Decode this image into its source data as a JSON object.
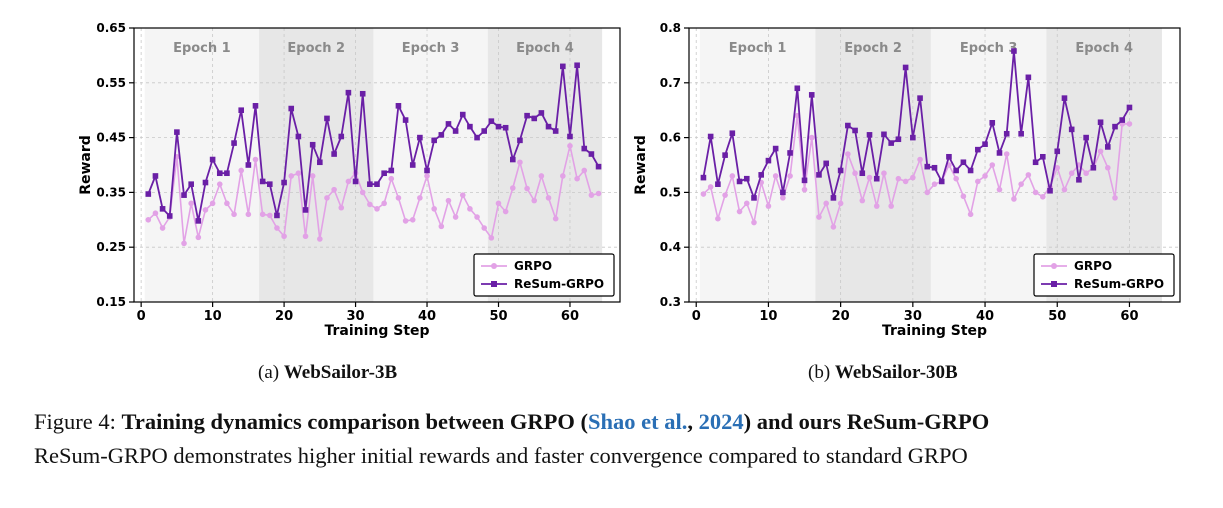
{
  "colors": {
    "grpo": "#e2a2e6",
    "resum": "#6a1fa6",
    "epoch_odd": "#f5f5f5",
    "epoch_even": "#e7e7e7",
    "epoch_label": "#8a8a8a",
    "cite": "#2a6fb5"
  },
  "chart_data": [
    {
      "type": "line",
      "title": "",
      "xlabel": "Training Step",
      "ylabel": "Reward",
      "xlim": [
        -1,
        67
      ],
      "ylim": [
        0.15,
        0.65
      ],
      "xticks": [
        0,
        10,
        20,
        30,
        40,
        50,
        60
      ],
      "yticks": [
        0.15,
        0.25,
        0.35,
        0.45,
        0.55,
        0.65
      ],
      "ytick_labels": [
        "0.15",
        "0.25",
        "0.35",
        "0.45",
        "0.55",
        "0.65"
      ],
      "grid": true,
      "legend_position": "lower-right",
      "epochs": [
        {
          "label": "Epoch 1",
          "start": 1,
          "end": 16
        },
        {
          "label": "Epoch 2",
          "start": 17,
          "end": 32
        },
        {
          "label": "Epoch 3",
          "start": 33,
          "end": 48
        },
        {
          "label": "Epoch 4",
          "start": 49,
          "end": 64
        }
      ],
      "x": [
        1,
        2,
        3,
        4,
        5,
        6,
        7,
        8,
        9,
        10,
        11,
        12,
        13,
        14,
        15,
        16,
        17,
        18,
        19,
        20,
        21,
        22,
        23,
        24,
        25,
        26,
        27,
        28,
        29,
        30,
        31,
        32,
        33,
        34,
        35,
        36,
        37,
        38,
        39,
        40,
        41,
        42,
        43,
        44,
        45,
        46,
        47,
        48,
        49,
        50,
        51,
        52,
        53,
        54,
        55,
        56,
        57,
        58,
        59,
        60,
        61,
        62,
        63,
        64
      ],
      "series": [
        {
          "name": "GRPO",
          "marker": "circle",
          "values": [
            0.3,
            0.312,
            0.285,
            0.305,
            0.415,
            0.257,
            0.33,
            0.268,
            0.318,
            0.33,
            0.365,
            0.33,
            0.31,
            0.39,
            0.31,
            0.41,
            0.31,
            0.308,
            0.285,
            0.27,
            0.38,
            0.385,
            0.27,
            0.38,
            0.265,
            0.34,
            0.355,
            0.322,
            0.37,
            0.385,
            0.35,
            0.328,
            0.32,
            0.33,
            0.375,
            0.34,
            0.298,
            0.3,
            0.34,
            0.38,
            0.32,
            0.288,
            0.335,
            0.305,
            0.345,
            0.32,
            0.305,
            0.285,
            0.267,
            0.33,
            0.315,
            0.358,
            0.405,
            0.357,
            0.335,
            0.38,
            0.34,
            0.302,
            0.38,
            0.435,
            0.375,
            0.39,
            0.345,
            0.348
          ]
        },
        {
          "name": "ReSum-GRPO",
          "marker": "square",
          "values": [
            0.347,
            0.38,
            0.32,
            0.307,
            0.46,
            0.345,
            0.365,
            0.298,
            0.368,
            0.41,
            0.385,
            0.385,
            0.44,
            0.5,
            0.4,
            0.508,
            0.37,
            0.365,
            0.308,
            0.368,
            0.503,
            0.452,
            0.318,
            0.437,
            0.405,
            0.485,
            0.42,
            0.452,
            0.532,
            0.37,
            0.53,
            0.365,
            0.365,
            0.385,
            0.39,
            0.508,
            0.482,
            0.4,
            0.45,
            0.39,
            0.445,
            0.455,
            0.475,
            0.462,
            0.492,
            0.47,
            0.45,
            0.462,
            0.48,
            0.47,
            0.468,
            0.41,
            0.445,
            0.49,
            0.485,
            0.495,
            0.47,
            0.462,
            0.58,
            0.452,
            0.582,
            0.43,
            0.42,
            0.397
          ]
        }
      ],
      "caption_label": "(a)",
      "caption_title": "WebSailor-3B"
    },
    {
      "type": "line",
      "title": "",
      "xlabel": "Training Step",
      "ylabel": "Reward",
      "xlim": [
        -1,
        67
      ],
      "ylim": [
        0.3,
        0.8
      ],
      "xticks": [
        0,
        10,
        20,
        30,
        40,
        50,
        60
      ],
      "yticks": [
        0.3,
        0.4,
        0.5,
        0.6,
        0.7,
        0.8
      ],
      "ytick_labels": [
        "0.3",
        "0.4",
        "0.5",
        "0.6",
        "0.7",
        "0.8"
      ],
      "grid": true,
      "legend_position": "lower-right",
      "epochs": [
        {
          "label": "Epoch 1",
          "start": 1,
          "end": 16
        },
        {
          "label": "Epoch 2",
          "start": 17,
          "end": 32
        },
        {
          "label": "Epoch 3",
          "start": 33,
          "end": 48
        },
        {
          "label": "Epoch 4",
          "start": 49,
          "end": 64
        }
      ],
      "x": [
        1,
        2,
        3,
        4,
        5,
        6,
        7,
        8,
        9,
        10,
        11,
        12,
        13,
        14,
        15,
        16,
        17,
        18,
        19,
        20,
        21,
        22,
        23,
        24,
        25,
        26,
        27,
        28,
        29,
        30,
        31,
        32,
        33,
        34,
        35,
        36,
        37,
        38,
        39,
        40,
        41,
        42,
        43,
        44,
        45,
        46,
        47,
        48,
        49,
        50,
        51,
        52,
        53,
        54,
        55,
        56,
        57,
        58,
        59,
        60
      ],
      "series": [
        {
          "name": "GRPO",
          "marker": "circle",
          "values": [
            0.497,
            0.51,
            0.452,
            0.495,
            0.53,
            0.465,
            0.48,
            0.445,
            0.518,
            0.475,
            0.53,
            0.49,
            0.53,
            0.64,
            0.505,
            0.6,
            0.455,
            0.48,
            0.437,
            0.48,
            0.57,
            0.535,
            0.485,
            0.527,
            0.475,
            0.535,
            0.475,
            0.525,
            0.52,
            0.527,
            0.56,
            0.5,
            0.515,
            0.52,
            0.55,
            0.525,
            0.493,
            0.46,
            0.52,
            0.53,
            0.55,
            0.505,
            0.57,
            0.488,
            0.515,
            0.532,
            0.5,
            0.492,
            0.51,
            0.545,
            0.505,
            0.535,
            0.55,
            0.535,
            0.545,
            0.575,
            0.545,
            0.49,
            0.625,
            0.625
          ]
        },
        {
          "name": "ReSum-GRPO",
          "marker": "square",
          "values": [
            0.527,
            0.602,
            0.515,
            0.568,
            0.608,
            0.52,
            0.525,
            0.49,
            0.532,
            0.558,
            0.58,
            0.5,
            0.572,
            0.69,
            0.522,
            0.678,
            0.532,
            0.553,
            0.49,
            0.54,
            0.622,
            0.613,
            0.535,
            0.605,
            0.525,
            0.606,
            0.59,
            0.597,
            0.728,
            0.6,
            0.672,
            0.547,
            0.545,
            0.52,
            0.565,
            0.54,
            0.555,
            0.54,
            0.578,
            0.588,
            0.627,
            0.572,
            0.607,
            0.758,
            0.607,
            0.71,
            0.555,
            0.565,
            0.503,
            0.575,
            0.672,
            0.615,
            0.523,
            0.6,
            0.545,
            0.628,
            0.583,
            0.62,
            0.632,
            0.655
          ]
        }
      ],
      "caption_label": "(b)",
      "caption_title": "WebSailor-30B"
    }
  ],
  "figure_caption": {
    "label": "Figure 4:",
    "bold_part1": "Training dynamics comparison between GRPO (",
    "cite_author": "Shao et al.",
    "cite_sep": ", ",
    "cite_year": "2024",
    "bold_part2": ") and ours ReSum-GRPO",
    "line2": "ReSum-GRPO demonstrates higher initial rewards and faster convergence compared to standard GRPO"
  }
}
